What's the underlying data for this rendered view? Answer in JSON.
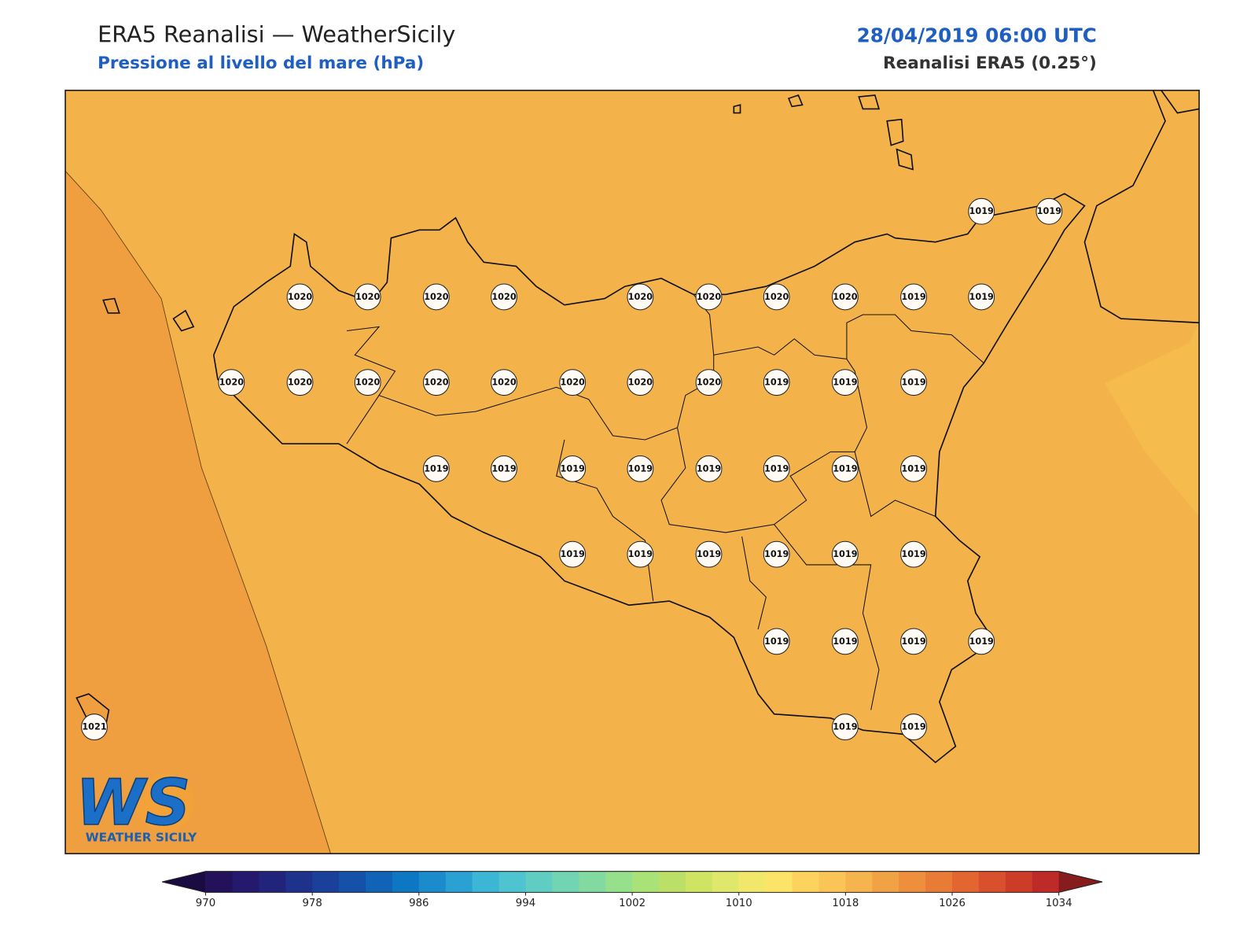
{
  "header": {
    "title": "ERA5 Reanalisi — WeatherSicily",
    "subtitle": "Pressione al livello del mare (hPa)",
    "datetime": "28/04/2019 06:00 UTC",
    "source": "Reanalisi ERA5 (0.25°)"
  },
  "map": {
    "pressure_labels": [
      1019,
      1019,
      1020,
      1020,
      1020,
      1020,
      1020,
      1020,
      1020,
      1020,
      1019,
      1019,
      1020,
      1020,
      1020,
      1020,
      1020,
      1020,
      1020,
      1020,
      1019,
      1019,
      1019,
      1019,
      1019,
      1019,
      1019,
      1019,
      1019,
      1019,
      1019,
      1019,
      1019,
      1019,
      1019,
      1019,
      1019,
      1019,
      1019,
      1019,
      1019,
      1021,
      1019,
      1019
    ]
  },
  "colorbar": {
    "ticks": [
      970,
      978,
      986,
      994,
      1002,
      1010,
      1018,
      1026,
      1034
    ],
    "colors": [
      "#23115a",
      "#24196d",
      "#22247c",
      "#1e318b",
      "#1a409a",
      "#1551a9",
      "#1163b8",
      "#0e77c4",
      "#1b8bcc",
      "#2aa0d3",
      "#3bb6d5",
      "#4dc4cf",
      "#5fcdc2",
      "#71d4b2",
      "#83daa0",
      "#96df8b",
      "#a9e377",
      "#bce067",
      "#cfe463",
      "#e0e86c",
      "#f1e76b",
      "#fce468",
      "#fdd35e",
      "#fac457",
      "#f5b44e",
      "#f1a245",
      "#ed8f3d",
      "#e87b36",
      "#e3652f",
      "#d9512c",
      "#cc3c29",
      "#be2a27"
    ],
    "under": "#1a0b40",
    "over": "#861c1c"
  },
  "logo": {
    "mark": "WS",
    "caption": "WEATHER SICILY"
  }
}
